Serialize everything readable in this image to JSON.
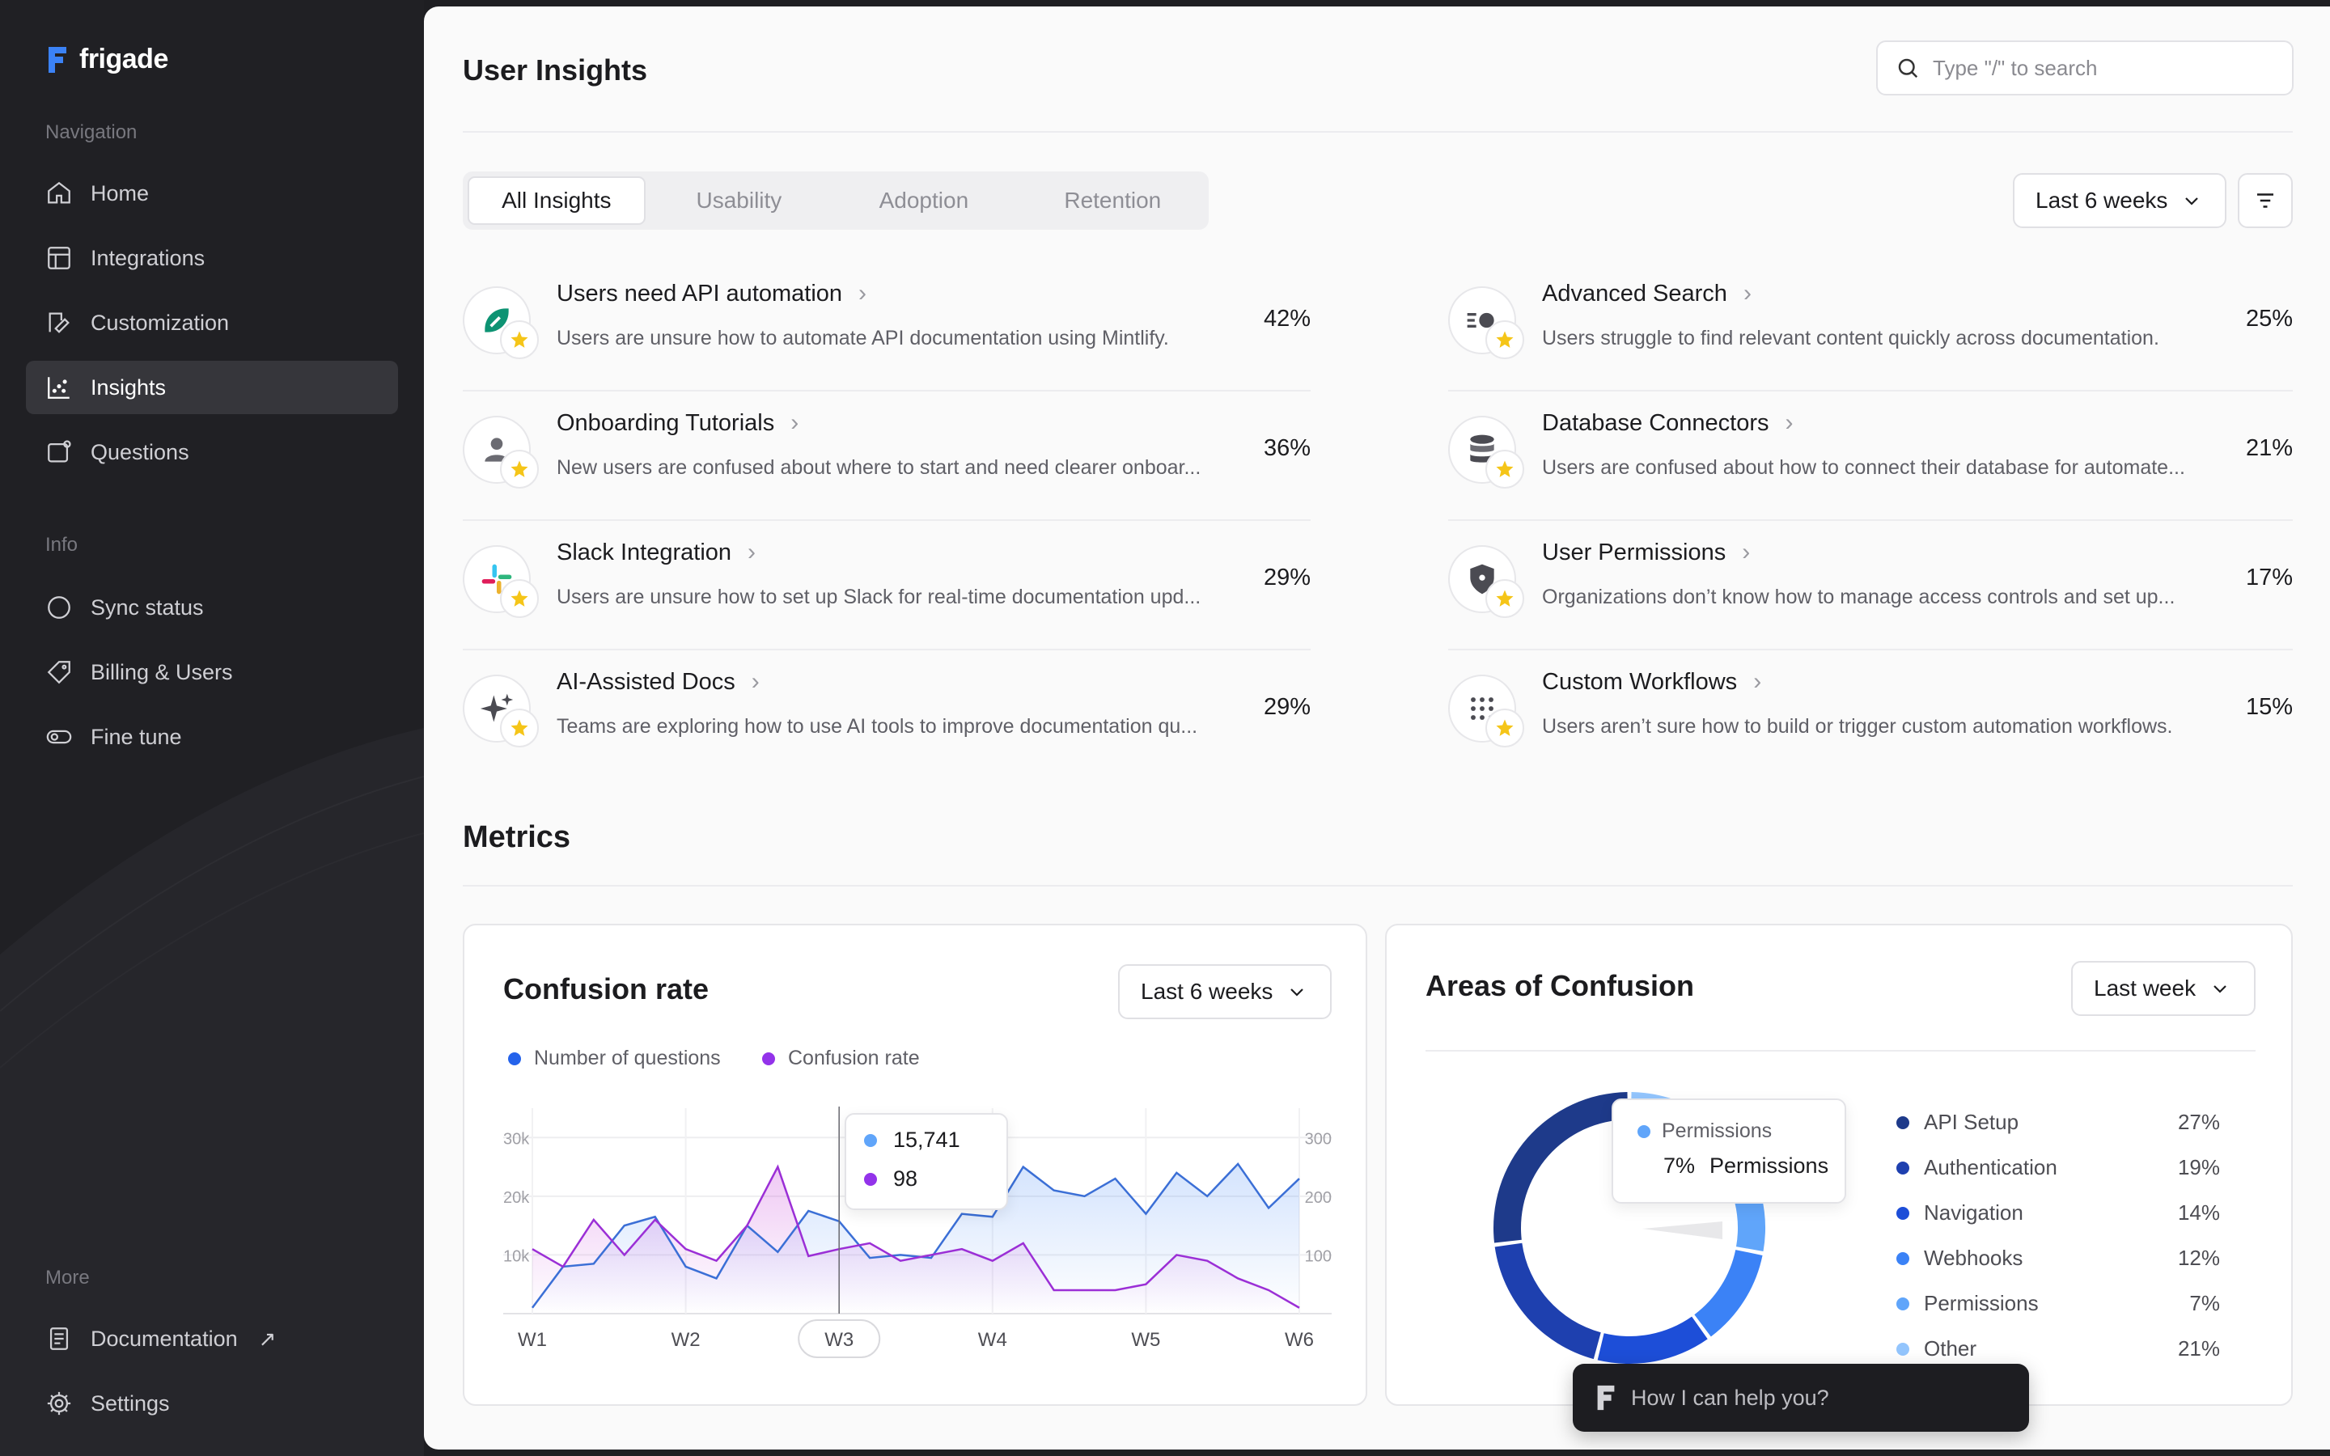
{
  "app": {
    "brand_name": "frigade",
    "brand_color": "#3b82f6"
  },
  "sidebar": {
    "sections": [
      {
        "label": "Navigation"
      },
      {
        "label": "Info"
      },
      {
        "label": "More"
      }
    ],
    "nav_items": [
      {
        "label": "Home",
        "icon": "home-icon"
      },
      {
        "label": "Integrations",
        "icon": "grid-icon"
      },
      {
        "label": "Customization",
        "icon": "brush-icon"
      },
      {
        "label": "Insights",
        "icon": "chart-icon",
        "active": true
      },
      {
        "label": "Questions",
        "icon": "question-icon"
      }
    ],
    "info_items": [
      {
        "label": "Sync status",
        "icon": "circle-icon"
      },
      {
        "label": "Billing & Users",
        "icon": "tag-icon"
      },
      {
        "label": "Fine tune",
        "icon": "toggle-icon"
      }
    ],
    "more_items": [
      {
        "label": "Documentation",
        "icon": "document-icon",
        "external": "↗"
      },
      {
        "label": "Settings",
        "icon": "gear-icon"
      }
    ]
  },
  "header": {
    "title": "User Insights",
    "search_placeholder": "Type \"/\" to search"
  },
  "tabs": [
    {
      "label": "All Insights",
      "active": true
    },
    {
      "label": "Usability"
    },
    {
      "label": "Adoption"
    },
    {
      "label": "Retention"
    }
  ],
  "range_selector": {
    "label": "Last 6 weeks"
  },
  "insights": [
    {
      "title": "Users need API automation",
      "desc": "Users are unsure how to automate API documentation using Mintlify.",
      "pct": "42%",
      "icon": "mintlify-icon"
    },
    {
      "title": "Onboarding Tutorials",
      "desc": "New users are confused about where to start and need clearer onboar...",
      "pct": "36%",
      "icon": "user-icon"
    },
    {
      "title": "Slack Integration",
      "desc": "Users are unsure how to set up Slack for real-time documentation upd...",
      "pct": "29%",
      "icon": "slack-icon"
    },
    {
      "title": "AI-Assisted Docs",
      "desc": "Teams are exploring how to use AI tools to improve documentation qu...",
      "pct": "29%",
      "icon": "sparkle-icon"
    },
    {
      "title": "Advanced Search",
      "desc": "Users struggle to find relevant content quickly across documentation.",
      "pct": "25%",
      "icon": "search-list-icon"
    },
    {
      "title": "Database Connectors",
      "desc": "Users are confused about how to connect their database for automate...",
      "pct": "21%",
      "icon": "database-icon"
    },
    {
      "title": "User Permissions",
      "desc": "Organizations don’t know how to manage access controls and set up...",
      "pct": "17%",
      "icon": "shield-icon"
    },
    {
      "title": "Custom Workflows",
      "desc": "Users aren’t sure how to build or trigger custom automation workflows.",
      "pct": "15%",
      "icon": "dots-grid-icon"
    }
  ],
  "metrics": {
    "title": "Metrics"
  },
  "confusion_card": {
    "title": "Confusion rate",
    "range_label": "Last 6 weeks",
    "colors": {
      "questions": "#3b6fd6",
      "confusion": "#9b2fd6"
    },
    "tooltip": {
      "questions_value": "15,741",
      "confusion_value": "98"
    }
  },
  "areas_card": {
    "title": "Areas of Confusion",
    "range_label": "Last week",
    "tooltip": {
      "label": "Permissions",
      "value": "7%",
      "name": "Permissions"
    }
  },
  "chart_data": [
    {
      "type": "line",
      "title": "Confusion rate",
      "x_ticks": [
        "W1",
        "W2",
        "W3",
        "W4",
        "W5",
        "W6"
      ],
      "y_left_ticks": [
        "30k",
        "20k",
        "10k"
      ],
      "y_right_ticks": [
        "300",
        "200",
        "100"
      ],
      "highlighted_tick": "W3",
      "series": [
        {
          "name": "Number of questions",
          "axis": "left",
          "color": "#3b6fd6",
          "values": [
            1000,
            8000,
            8500,
            15000,
            16500,
            8000,
            6000,
            15000,
            10500,
            17500,
            15741,
            9500,
            10000,
            9500,
            17000,
            16500,
            25000,
            21000,
            20000,
            23000,
            17000,
            24000,
            20000,
            25500,
            18000,
            23000
          ]
        },
        {
          "name": "Confusion rate",
          "axis": "right",
          "color": "#9b2fd6",
          "values": [
            110,
            80,
            160,
            100,
            160,
            110,
            90,
            150,
            250,
            98,
            110,
            120,
            90,
            100,
            110,
            90,
            120,
            40,
            40,
            40,
            50,
            100,
            90,
            60,
            40,
            10
          ]
        }
      ]
    },
    {
      "type": "pie",
      "title": "Areas of Confusion",
      "categories": [
        "API Setup",
        "Authentication",
        "Navigation",
        "Webhooks",
        "Permissions",
        "Other"
      ],
      "values": [
        27,
        19,
        14,
        12,
        7,
        21
      ],
      "colors": [
        "#1e3a8a",
        "#1e40af",
        "#1d4ed8",
        "#3b82f6",
        "#60a5fa",
        "#93c5fd"
      ],
      "labels": [
        "27%",
        "19%",
        "14%",
        "12%",
        "7%",
        "21%"
      ]
    }
  ],
  "chat": {
    "placeholder": "How I can help you?"
  }
}
